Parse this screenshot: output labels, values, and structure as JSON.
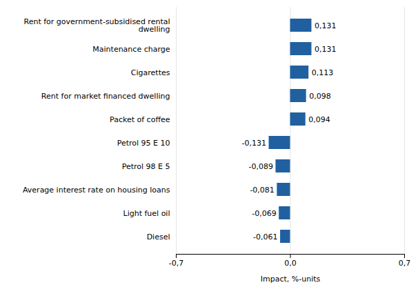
{
  "chart_data": {
    "type": "bar",
    "orientation": "horizontal",
    "categories": [
      "Diesel",
      "Light fuel oil",
      "Average interest rate on housing loans",
      "Petrol 98 E 5",
      "Petrol 95 E 10",
      "Packet of coffee",
      "Rent for market financed dwelling",
      "Cigarettes",
      "Maintenance charge",
      "Rent for government-subsidised rental\ndwelling"
    ],
    "values": [
      -0.061,
      -0.069,
      -0.081,
      -0.089,
      -0.131,
      0.094,
      0.098,
      0.113,
      0.131,
      0.131
    ],
    "value_labels": [
      "-0,061",
      "-0,069",
      "-0,081",
      "-0,089",
      "-0,131",
      "0,094",
      "0,098",
      "0,113",
      "0,131",
      "0,131"
    ],
    "data_labels": true,
    "color": "#2060a0",
    "xlabel": "Impact, %-units",
    "xlim": [
      -0.7,
      0.7
    ],
    "xticks": [
      {
        "value": -0.7,
        "label": "-0,7"
      },
      {
        "value": 0.0,
        "label": "0,0"
      },
      {
        "value": 0.7,
        "label": "0,7"
      }
    ],
    "grid": true
  }
}
